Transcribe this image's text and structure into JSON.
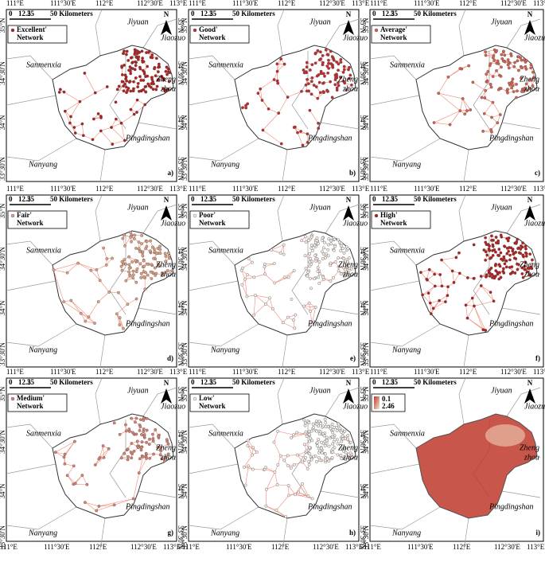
{
  "lon_labels": [
    "111°E",
    "111°30'E",
    "112°E",
    "112°30'E",
    "113°E"
  ],
  "lat_labels": [
    "35°N",
    "34°30'N",
    "34°N",
    "33°30'N"
  ],
  "scale": [
    "0",
    "12.5",
    "25",
    "50 Kilometers"
  ],
  "north": "N",
  "places": [
    "Jiyuan",
    "Jiaozuo",
    "Sanmenxia",
    "Zheng",
    "zhou",
    "Pingdingshan",
    "Nanyang"
  ],
  "panels": [
    {
      "legend": "Excellent'",
      "network": "Network",
      "letter": "a)",
      "color": "#b71c1c"
    },
    {
      "legend": "Good'",
      "network": "Network",
      "letter": "b)",
      "color": "#c62828"
    },
    {
      "legend": "Average'",
      "network": "Network",
      "letter": "c)",
      "color": "#d9604f"
    },
    {
      "legend": "Fair'",
      "network": "Network",
      "letter": "d)",
      "color": "#e0a080"
    },
    {
      "legend": "Poor'",
      "network": "Network",
      "letter": "e)",
      "color": "#f4f0ea"
    },
    {
      "legend": "High'",
      "network": "Network",
      "letter": "f)",
      "color": "#b71c1c"
    },
    {
      "legend": "Medium'",
      "network": "Network",
      "letter": "g)",
      "color": "#d98070"
    },
    {
      "legend": "Low'",
      "network": "Network",
      "letter": "h)",
      "color": "#f4f0ea"
    },
    {
      "letter": "i)"
    }
  ],
  "ramp": [
    0.1,
    2.46
  ],
  "ramp_colors": [
    "#c0392b",
    "#f7e6cf"
  ]
}
